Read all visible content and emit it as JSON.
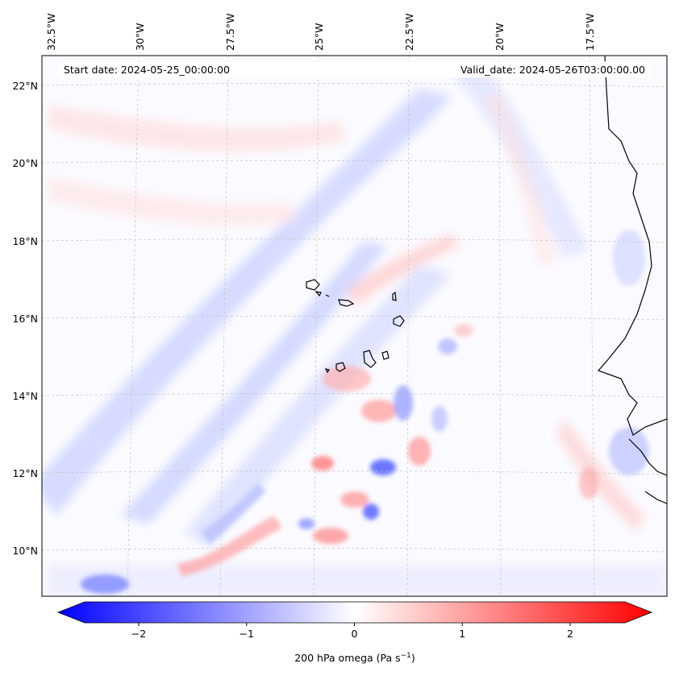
{
  "header": {
    "start_date": "Start date: 2024-05-25_00:00:00",
    "valid_date": "Valid_date: 2024-05-26T03:00:00.00"
  },
  "map": {
    "lon_labels": [
      "32.5°W",
      "30°W",
      "27.5°W",
      "25°W",
      "22.5°W",
      "20°W",
      "17.5°W"
    ],
    "lat_labels": [
      "22°N",
      "20°N",
      "18°N",
      "16°N",
      "14°N",
      "12°N",
      "10°N"
    ],
    "colors": {
      "negative": "#0000ff",
      "positive": "#ff0000",
      "neutral": "#ffffff",
      "coastline": "#000000",
      "gridline": "#bbbbbb"
    }
  },
  "colorbar": {
    "tick_labels": [
      "−2",
      "−1",
      "0",
      "1",
      "2"
    ],
    "tick_values": [
      -2,
      -1,
      0,
      1,
      2
    ],
    "range": [
      -2.5,
      2.5
    ],
    "label_main": "200 hPa omega (Pa s",
    "label_sup": "−1",
    "label_end": ")"
  }
}
